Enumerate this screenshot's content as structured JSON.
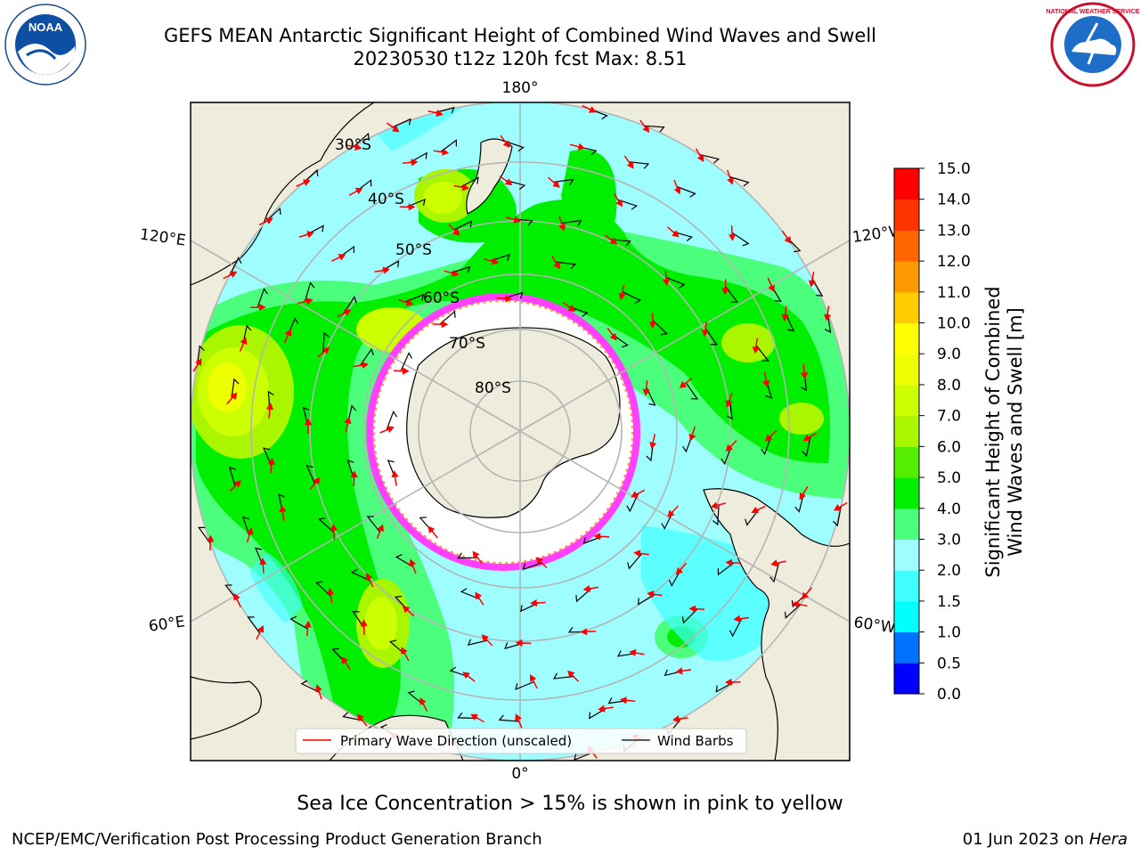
{
  "title_line1": "GEFS MEAN Antarctic Significant Height of Combined Wind Waves and Swell",
  "title_line2": "20230530 t12z 120h fcst   Max: 8.51",
  "logos": {
    "left": "NOAA",
    "right": "NATIONAL WEATHER SERVICE"
  },
  "map": {
    "projection": "south-polar-stereographic",
    "longitude_labels": [
      "180°",
      "120°E",
      "120°W",
      "60°E",
      "60°W",
      "0°"
    ],
    "latitude_labels": [
      "30°S",
      "40°S",
      "50°S",
      "60°S",
      "70°S",
      "80°S"
    ],
    "colors": {
      "land": "#eeecdc",
      "ice": "#ffffff",
      "grid": "#b4b4b4",
      "arrow": "#ff0000",
      "barb": "#000000"
    }
  },
  "legend": {
    "wave_direction": "Primary Wave Direction (unscaled)",
    "wind_barbs": "Wind Barbs"
  },
  "colorbar": {
    "label_line1": "Significant Height of Combined",
    "label_line2": "Wind Waves and Swell [m]",
    "ticks": [
      "0.0",
      "0.5",
      "1.0",
      "1.5",
      "2.0",
      "3.0",
      "4.0",
      "5.0",
      "6.0",
      "7.0",
      "8.0",
      "9.0",
      "10.0",
      "11.0",
      "12.0",
      "13.0",
      "14.0",
      "15.0"
    ],
    "colors": [
      "#0000ff",
      "#0072ff",
      "#00ffff",
      "#3fffff",
      "#9efeff",
      "#4bff7d",
      "#00ee00",
      "#55ee00",
      "#aaf500",
      "#ccff00",
      "#eeff00",
      "#ffff00",
      "#ffcc00",
      "#ff9900",
      "#ff6600",
      "#ff3300",
      "#ff0000"
    ]
  },
  "caption": "Sea Ice Concentration > 15% is shown in pink to yellow",
  "credit": "NCEP/EMC/Verification Post Processing Product Generation Branch",
  "date_text": "01 Jun 2023 on",
  "host": "Hera"
}
